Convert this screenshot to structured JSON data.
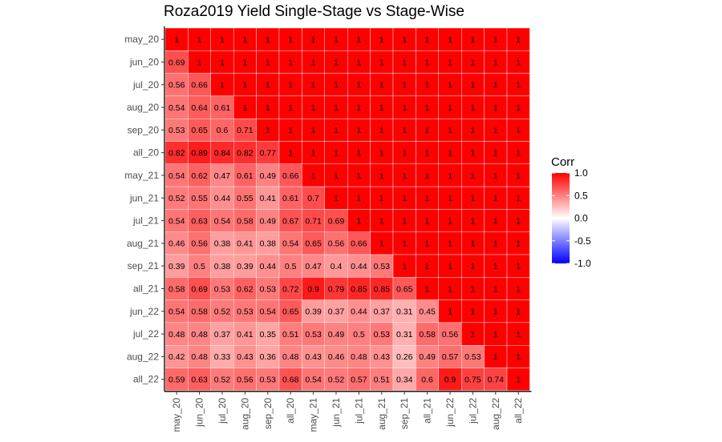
{
  "chart_data": {
    "type": "heatmap",
    "title": "Roza2019 Yield Single-Stage vs Stage-Wise",
    "xlabel": "",
    "ylabel": "",
    "x_categories": [
      "may_20",
      "jun_20",
      "jul_20",
      "aug_20",
      "sep_20",
      "all_20",
      "may_21",
      "jun_21",
      "jul_21",
      "aug_21",
      "sep_21",
      "all_21",
      "jun_22",
      "jul_22",
      "aug_22",
      "all_22"
    ],
    "y_categories": [
      "may_20",
      "jun_20",
      "jul_20",
      "aug_20",
      "sep_20",
      "all_20",
      "may_21",
      "jun_21",
      "jul_21",
      "aug_21",
      "sep_21",
      "all_21",
      "jun_22",
      "jul_22",
      "aug_22",
      "all_22"
    ],
    "values": [
      [
        1,
        1,
        1,
        1,
        1,
        1,
        1,
        1,
        1,
        1,
        1,
        1,
        1,
        1,
        1,
        1
      ],
      [
        0.69,
        1,
        1,
        1,
        1,
        1,
        1,
        1,
        1,
        1,
        1,
        1,
        1,
        1,
        1,
        1
      ],
      [
        0.56,
        0.66,
        1,
        1,
        1,
        1,
        1,
        1,
        1,
        1,
        1,
        1,
        1,
        1,
        1,
        1
      ],
      [
        0.54,
        0.64,
        0.61,
        1,
        1,
        1,
        1,
        1,
        1,
        1,
        1,
        1,
        1,
        1,
        1,
        1
      ],
      [
        0.53,
        0.65,
        0.6,
        0.71,
        1,
        1,
        1,
        1,
        1,
        1,
        1,
        1,
        1,
        1,
        1,
        1
      ],
      [
        0.82,
        0.89,
        0.84,
        0.82,
        0.77,
        1,
        1,
        1,
        1,
        1,
        1,
        1,
        1,
        1,
        1,
        1
      ],
      [
        0.54,
        0.62,
        0.47,
        0.61,
        0.49,
        0.66,
        1,
        1,
        1,
        1,
        1,
        1,
        1,
        1,
        1,
        1
      ],
      [
        0.52,
        0.55,
        0.44,
        0.55,
        0.41,
        0.61,
        0.7,
        1,
        1,
        1,
        1,
        1,
        1,
        1,
        1,
        1
      ],
      [
        0.54,
        0.63,
        0.54,
        0.58,
        0.49,
        0.67,
        0.71,
        0.69,
        1,
        1,
        1,
        1,
        1,
        1,
        1,
        1
      ],
      [
        0.46,
        0.56,
        0.38,
        0.41,
        0.38,
        0.54,
        0.65,
        0.56,
        0.66,
        1,
        1,
        1,
        1,
        1,
        1,
        1
      ],
      [
        0.39,
        0.5,
        0.38,
        0.39,
        0.44,
        0.5,
        0.47,
        0.4,
        0.44,
        0.53,
        1,
        1,
        1,
        1,
        1,
        1
      ],
      [
        0.58,
        0.69,
        0.53,
        0.62,
        0.53,
        0.72,
        0.9,
        0.79,
        0.85,
        0.85,
        0.65,
        1,
        1,
        1,
        1,
        1
      ],
      [
        0.54,
        0.58,
        0.52,
        0.53,
        0.54,
        0.65,
        0.39,
        0.37,
        0.44,
        0.37,
        0.31,
        0.45,
        1,
        1,
        1,
        1
      ],
      [
        0.48,
        0.48,
        0.37,
        0.41,
        0.35,
        0.51,
        0.53,
        0.49,
        0.5,
        0.53,
        0.31,
        0.58,
        0.56,
        1,
        1,
        1
      ],
      [
        0.42,
        0.48,
        0.33,
        0.43,
        0.36,
        0.48,
        0.43,
        0.46,
        0.48,
        0.43,
        0.26,
        0.49,
        0.57,
        0.53,
        1,
        1
      ],
      [
        0.59,
        0.63,
        0.52,
        0.56,
        0.53,
        0.68,
        0.54,
        0.52,
        0.57,
        0.51,
        0.34,
        0.6,
        0.9,
        0.75,
        0.74,
        1
      ]
    ],
    "color_scale": {
      "low": "#0000ff",
      "mid": "#ffffff",
      "high": "#ff0000",
      "limits": [
        -1,
        1
      ]
    },
    "legend": {
      "title": "Corr",
      "ticks": [
        "1.0",
        "0.5",
        "0.0",
        "-0.5",
        "-1.0"
      ],
      "tick_values": [
        1,
        0.5,
        0,
        -0.5,
        -1
      ],
      "position": "right"
    },
    "grid": false
  }
}
